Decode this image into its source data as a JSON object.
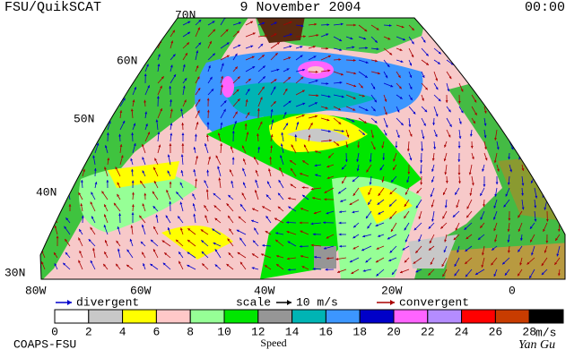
{
  "header": {
    "source": "FSU/QuikSCAT",
    "date": "9 November 2004",
    "time": "00:00"
  },
  "latitudes": [
    "70N",
    "60N",
    "50N",
    "40N",
    "30N"
  ],
  "longitudes": [
    "80W",
    "60W",
    "40W",
    "20W",
    "0"
  ],
  "legend": {
    "divergent": "divergent",
    "scale": "scale",
    "scale_value": "10 m/s",
    "convergent": "convergent",
    "divergent_color": "#0000cc",
    "convergent_color": "#aa0000"
  },
  "colorbar": {
    "ticks": [
      "0",
      "2",
      "4",
      "6",
      "8",
      "10",
      "12",
      "14",
      "16",
      "18",
      "20",
      "22",
      "24",
      "26",
      "28"
    ],
    "colors": [
      "#ffffff",
      "#c8c8c8",
      "#ffff00",
      "#ffc8c8",
      "#96ff96",
      "#00e600",
      "#969696",
      "#00b4b4",
      "#3c96ff",
      "#0000c8",
      "#ff64ff",
      "#b48cff",
      "#ff0000",
      "#c83c00",
      "#000000"
    ],
    "unit": "m/s",
    "label": "Speed"
  },
  "footer": {
    "left": "COAPS-FSU",
    "right": "Yan Gu"
  }
}
